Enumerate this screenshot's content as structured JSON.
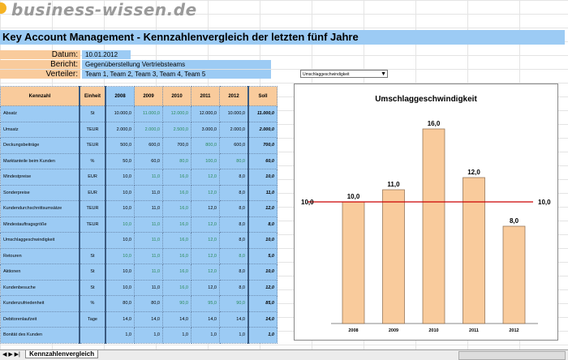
{
  "logo": "business-wissen.de",
  "title": "Key Account Management - Kennzahlenvergleich der letzten fünf Jahre",
  "info": [
    {
      "label": "Datum:",
      "value": "10.01.2012"
    },
    {
      "label": "Bericht:",
      "value": "Gegenüberstellung Vertriebsteams"
    },
    {
      "label": "Verteiler:",
      "value": "Team 1, Team 2, Team 3, Team 4, Team 5"
    }
  ],
  "dropdown": {
    "selected": "Umschlaggeschwindigkeit"
  },
  "table": {
    "headers": [
      "Kennzahl",
      "Einheit",
      "2008",
      "2009",
      "2010",
      "2011",
      "2012",
      "Soll"
    ],
    "rows": [
      [
        "Absatz",
        "St",
        "10.000,0",
        "11.000,0",
        "12.000,0",
        "12.000,0",
        "10.000,0",
        "11.000,0"
      ],
      [
        "Umsatz",
        "TEUR",
        "2.000,0",
        "2.000,0",
        "2.500,0",
        "3.000,0",
        "2.000,0",
        "2.000,0"
      ],
      [
        "Deckungsbeiträge",
        "TEUR",
        "500,0",
        "600,0",
        "700,0",
        "800,0",
        "600,0",
        "700,0"
      ],
      [
        "Marktanteile beim Kunden",
        "%",
        "50,0",
        "60,0",
        "80,0",
        "100,0",
        "80,0",
        "60,0"
      ],
      [
        "Mindestpreise",
        "EUR",
        "10,0",
        "11,0",
        "16,0",
        "12,0",
        "8,0",
        "10,0"
      ],
      [
        "Sonderpreise",
        "EUR",
        "10,0",
        "11,0",
        "16,0",
        "12,0",
        "8,0",
        "11,0"
      ],
      [
        "Kundendurchschnittsumsätze",
        "TEUR",
        "10,0",
        "11,0",
        "16,0",
        "12,0",
        "8,0",
        "12,0"
      ],
      [
        "Mindestauftragsgröße",
        "TEUR",
        "10,0",
        "11,0",
        "16,0",
        "12,0",
        "8,0",
        "8,0"
      ],
      [
        "Umschlaggeschwindigkeit",
        "",
        "10,0",
        "11,0",
        "16,0",
        "12,0",
        "8,0",
        "10,0"
      ],
      [
        "Retouren",
        "St",
        "10,0",
        "11,0",
        "16,0",
        "12,0",
        "8,0",
        "5,0"
      ],
      [
        "Aktionen",
        "St",
        "10,0",
        "11,0",
        "16,0",
        "12,0",
        "8,0",
        "10,0"
      ],
      [
        "Kundenbesuche",
        "St",
        "10,0",
        "11,0",
        "16,0",
        "12,0",
        "8,0",
        "12,0"
      ],
      [
        "Kundenzufriedenheit",
        "%",
        "80,0",
        "80,0",
        "90,0",
        "95,0",
        "90,0",
        "85,0"
      ],
      [
        "Debitorenlaufzeit",
        "Tage",
        "14,0",
        "14,0",
        "14,0",
        "14,0",
        "14,0",
        "14,0"
      ],
      [
        "Bonität des Kunden",
        "",
        "1,0",
        "1,0",
        "1,0",
        "1,0",
        "1,0",
        "1,0"
      ]
    ],
    "green": [
      [
        0,
        3
      ],
      [
        0,
        4
      ],
      [
        1,
        3
      ],
      [
        1,
        4
      ],
      [
        2,
        5
      ],
      [
        3,
        4
      ],
      [
        3,
        5
      ],
      [
        3,
        6
      ],
      [
        4,
        3
      ],
      [
        4,
        4
      ],
      [
        4,
        5
      ],
      [
        5,
        4
      ],
      [
        5,
        5
      ],
      [
        6,
        4
      ],
      [
        7,
        2
      ],
      [
        7,
        3
      ],
      [
        7,
        4
      ],
      [
        7,
        5
      ],
      [
        8,
        3
      ],
      [
        8,
        4
      ],
      [
        8,
        5
      ],
      [
        9,
        2
      ],
      [
        9,
        3
      ],
      [
        9,
        4
      ],
      [
        9,
        5
      ],
      [
        9,
        6
      ],
      [
        10,
        3
      ],
      [
        10,
        4
      ],
      [
        10,
        5
      ],
      [
        11,
        4
      ],
      [
        12,
        4
      ],
      [
        12,
        5
      ],
      [
        12,
        6
      ]
    ]
  },
  "sheet_tab": "Kennzahlenvergleich",
  "chart_data": {
    "type": "bar",
    "title": "Umschlaggeschwindigkeit",
    "categories": [
      "2008",
      "2009",
      "2010",
      "2011",
      "2012"
    ],
    "values": [
      10.0,
      11.0,
      16.0,
      12.0,
      8.0
    ],
    "value_labels": [
      "10,0",
      "11,0",
      "16,0",
      "12,0",
      "8,0"
    ],
    "target": 10.0,
    "target_label": "10,0",
    "ylim": [
      0,
      17
    ],
    "bar_color": "#f9cb9c",
    "target_color": "#cc0000"
  }
}
